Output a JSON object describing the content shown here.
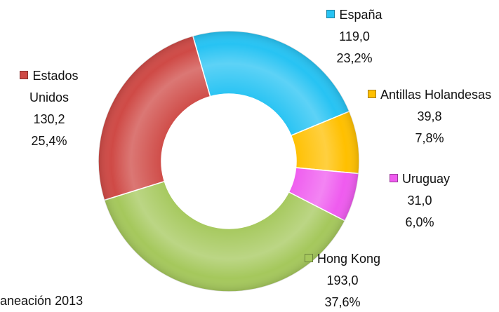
{
  "chart_data": {
    "type": "donut",
    "categories": [
      "España",
      "Antillas Holandesas",
      "Uruguay",
      "Hong Kong",
      "Estados Unidos"
    ],
    "values": [
      119.0,
      39.8,
      31.0,
      193.0,
      130.2
    ],
    "value_labels": [
      "119,0",
      "39,8",
      "31,0",
      "193,0",
      "130,2"
    ],
    "percent_labels": [
      "23,2%",
      "7,8%",
      "6,0%",
      "37,6%",
      "25,4%"
    ],
    "colors": [
      "#27c3f3",
      "#ffc000",
      "#ef5bef",
      "#a5c85c",
      "#cf4a46"
    ],
    "annotation": "aneación 2013"
  }
}
